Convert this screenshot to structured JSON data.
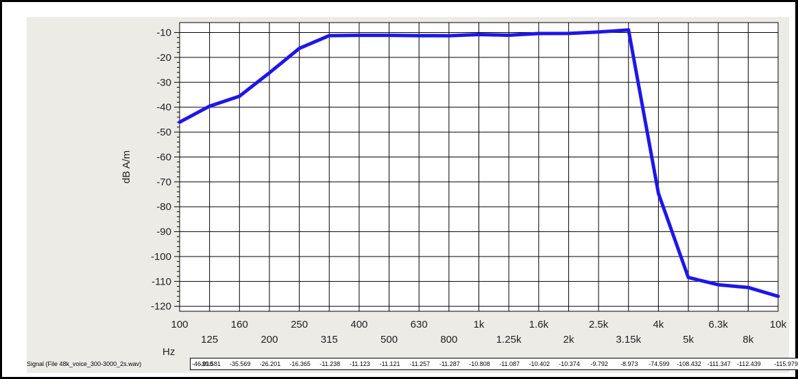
{
  "chart_data": {
    "type": "line",
    "ylabel": "dB A/m",
    "xlabel": "Hz",
    "x_categories": [
      "100",
      "125",
      "160",
      "200",
      "250",
      "315",
      "400",
      "500",
      "630",
      "800",
      "1k",
      "1.25k",
      "1.6k",
      "2k",
      "2.5k",
      "3.15k",
      "4k",
      "5k",
      "6.3k",
      "8k",
      "10k"
    ],
    "y_ticks": [
      -10,
      -20,
      -30,
      -40,
      -50,
      -60,
      -70,
      -80,
      -90,
      -100,
      -110,
      -120
    ],
    "ylim": [
      -122,
      -6
    ],
    "grid": true,
    "series": [
      {
        "values": [
          -46.01,
          -39.581,
          -35.569,
          -26.201,
          -16.365,
          -11.238,
          -11.123,
          -11.121,
          -11.257,
          -11.287,
          -10.808,
          -11.087,
          -10.402,
          -10.374,
          -9.792,
          -8.973,
          -74.599,
          -108.432,
          -111.347,
          -112.439,
          -115.979
        ]
      }
    ],
    "line_color": "#1f16e8"
  },
  "signal": {
    "label": "Signal (File 48k_voice_300-3000_2s.wav)",
    "values": [
      "-46.010",
      "-39.581",
      "-35.569",
      "-26.201",
      "-16.365",
      "-11.238",
      "-11.123",
      "-11.121",
      "-11.257",
      "-11.287",
      "-10.808",
      "-11.087",
      "-10.402",
      "-10.374",
      "-9.792",
      "-8.973",
      "-74.599",
      "-108.432",
      "-111.347",
      "-112.439",
      "-115.979"
    ]
  }
}
